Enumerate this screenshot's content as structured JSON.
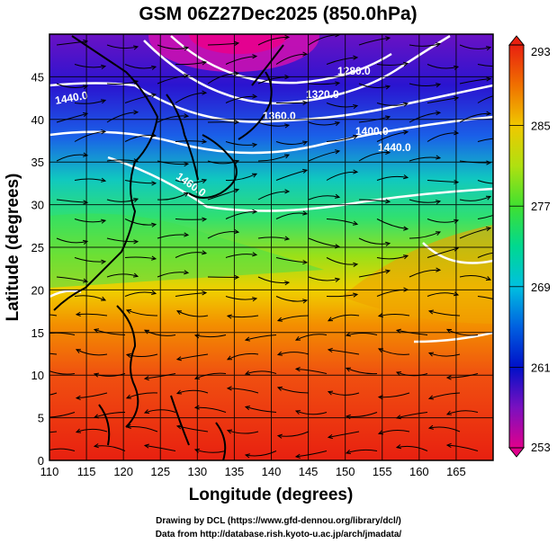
{
  "title": "GSM 06Z27Dec2025 (850.0hPa)",
  "map": {
    "xlabel": "Longitude (degrees)",
    "ylabel": "Latitude  (degrees)",
    "lon_range": [
      110,
      170
    ],
    "lat_range": [
      0,
      50
    ],
    "lon_ticks": [
      "110",
      "115",
      "120",
      "125",
      "130",
      "135",
      "140",
      "145",
      "150",
      "155",
      "160",
      "165"
    ],
    "lat_ticks": [
      "45",
      "40",
      "35",
      "30",
      "25",
      "20",
      "15",
      "10",
      "5",
      "0"
    ],
    "contour_labels": [
      "1280.0",
      "1320.0",
      "1360.0",
      "1400.0",
      "1440.0",
      "1440.0",
      "1460.0"
    ]
  },
  "colorbar": {
    "min": 253,
    "max": 293,
    "labels": [
      "293",
      "285",
      "277",
      "269",
      "261",
      "253"
    ],
    "colors": [
      "#e0008c",
      "#7a10c0",
      "#0010c8",
      "#0080e0",
      "#00d0d0",
      "#20e060",
      "#9ae010",
      "#f0d000",
      "#f08000",
      "#f03a10",
      "#e82010"
    ]
  },
  "credits": [
    "Drawing by DCL (https://www.gfd-dennou.org/library/dcl/)",
    "Data from http://database.rish.kyoto-u.ac.jp/arch/jmadata/"
  ]
}
